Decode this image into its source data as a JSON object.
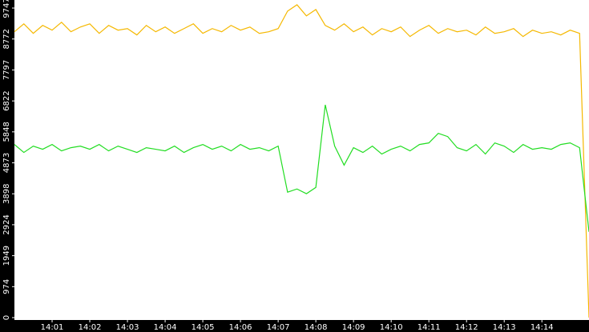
{
  "chart_data": {
    "type": "line",
    "x": [
      0,
      0.25,
      0.5,
      0.75,
      1,
      1.25,
      1.5,
      1.75,
      2,
      2.25,
      2.5,
      2.75,
      3,
      3.25,
      3.5,
      3.75,
      4,
      4.25,
      4.5,
      4.75,
      5,
      5.25,
      5.5,
      5.75,
      6,
      6.25,
      6.5,
      6.75,
      7,
      7.25,
      7.5,
      7.75,
      8,
      8.25,
      8.5,
      8.75,
      9,
      9.25,
      9.5,
      9.75,
      10,
      10.25,
      10.5,
      10.75,
      11,
      11.25,
      11.5,
      11.75,
      12,
      12.25,
      12.5,
      12.75,
      13,
      13.25,
      13.5,
      13.75,
      14,
      14.25,
      14.5,
      14.75,
      15,
      15.25
    ],
    "series": [
      {
        "color": "#f5b800",
        "values": [
          9000,
          9250,
          8950,
          9200,
          9050,
          9300,
          9000,
          9150,
          9250,
          8950,
          9200,
          9050,
          9100,
          8900,
          9200,
          9000,
          9150,
          8950,
          9100,
          9250,
          8950,
          9100,
          9000,
          9200,
          9050,
          9150,
          8950,
          9000,
          9100,
          9650,
          9850,
          9500,
          9700,
          9200,
          9050,
          9250,
          9000,
          9150,
          8900,
          9100,
          9000,
          9150,
          8850,
          9050,
          9200,
          8950,
          9100,
          9000,
          9050,
          8900,
          9150,
          8950,
          9000,
          9100,
          8850,
          9050,
          8950,
          9000,
          8900,
          9050,
          8950,
          0
        ]
      },
      {
        "color": "#22dd22",
        "values": [
          5450,
          5200,
          5400,
          5300,
          5450,
          5250,
          5350,
          5400,
          5300,
          5450,
          5250,
          5400,
          5300,
          5200,
          5350,
          5300,
          5250,
          5400,
          5200,
          5350,
          5450,
          5300,
          5400,
          5250,
          5450,
          5300,
          5350,
          5250,
          5400,
          3950,
          4050,
          3900,
          4100,
          6700,
          5400,
          4800,
          5350,
          5200,
          5400,
          5150,
          5300,
          5400,
          5250,
          5450,
          5500,
          5800,
          5700,
          5350,
          5250,
          5450,
          5150,
          5500,
          5400,
          5200,
          5450,
          5300,
          5350,
          5300,
          5450,
          5500,
          5350,
          2700
        ]
      }
    ],
    "xlim": [
      0,
      15.25
    ],
    "xticks": [
      {
        "value": 1,
        "label": "14:01"
      },
      {
        "value": 2,
        "label": "14:02"
      },
      {
        "value": 3,
        "label": "14:03"
      },
      {
        "value": 4,
        "label": "14:04"
      },
      {
        "value": 5,
        "label": "14:05"
      },
      {
        "value": 6,
        "label": "14:06"
      },
      {
        "value": 7,
        "label": "14:07"
      },
      {
        "value": 8,
        "label": "14:08"
      },
      {
        "value": 9,
        "label": "14:09"
      },
      {
        "value": 10,
        "label": "14:10"
      },
      {
        "value": 11,
        "label": "14:11"
      },
      {
        "value": 12,
        "label": "14:12"
      },
      {
        "value": 13,
        "label": "14:13"
      },
      {
        "value": 14,
        "label": "14:14"
      }
    ],
    "ylim": [
      0,
      10000
    ],
    "yticks": [
      0,
      974,
      1949,
      2924,
      3898,
      4873,
      5848,
      6822,
      7797,
      8772,
      9747
    ]
  }
}
